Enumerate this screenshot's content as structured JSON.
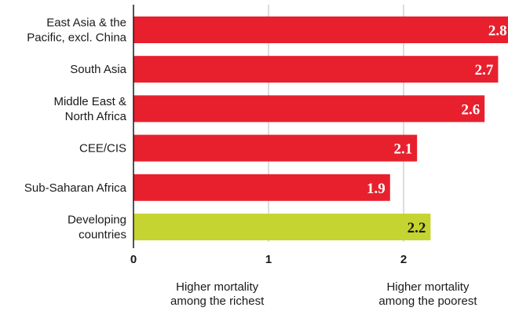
{
  "chart_data": {
    "type": "bar",
    "orientation": "horizontal",
    "categories": [
      [
        "East Asia & the",
        "Pacific, excl. China"
      ],
      [
        "South Asia"
      ],
      [
        "Middle East &",
        "North Africa"
      ],
      [
        "CEE/CIS"
      ],
      [
        "Sub-Saharan Africa"
      ],
      [
        "Developing",
        "countries"
      ]
    ],
    "values": [
      2.8,
      2.7,
      2.6,
      2.1,
      1.9,
      2.2
    ],
    "value_labels": [
      "2.8",
      "2.7",
      "2.6",
      "2.1",
      "1.9",
      "2.2"
    ],
    "bar_colors": [
      "#e8202e",
      "#e8202e",
      "#e8202e",
      "#e8202e",
      "#e8202e",
      "#c6d431"
    ],
    "value_label_colors": [
      "#ffffff",
      "#ffffff",
      "#ffffff",
      "#ffffff",
      "#ffffff",
      "#1a1a1a"
    ],
    "xlim": [
      0,
      2.8
    ],
    "ticks": [
      0,
      1,
      2
    ],
    "tick_labels": [
      "0",
      "1",
      "2"
    ],
    "axis_notes": [
      [
        "Higher mortality",
        "among the richest"
      ],
      [
        "Higher mortality",
        "among the poorest"
      ]
    ],
    "grid": true,
    "grid_color": "#bbbbbb"
  }
}
